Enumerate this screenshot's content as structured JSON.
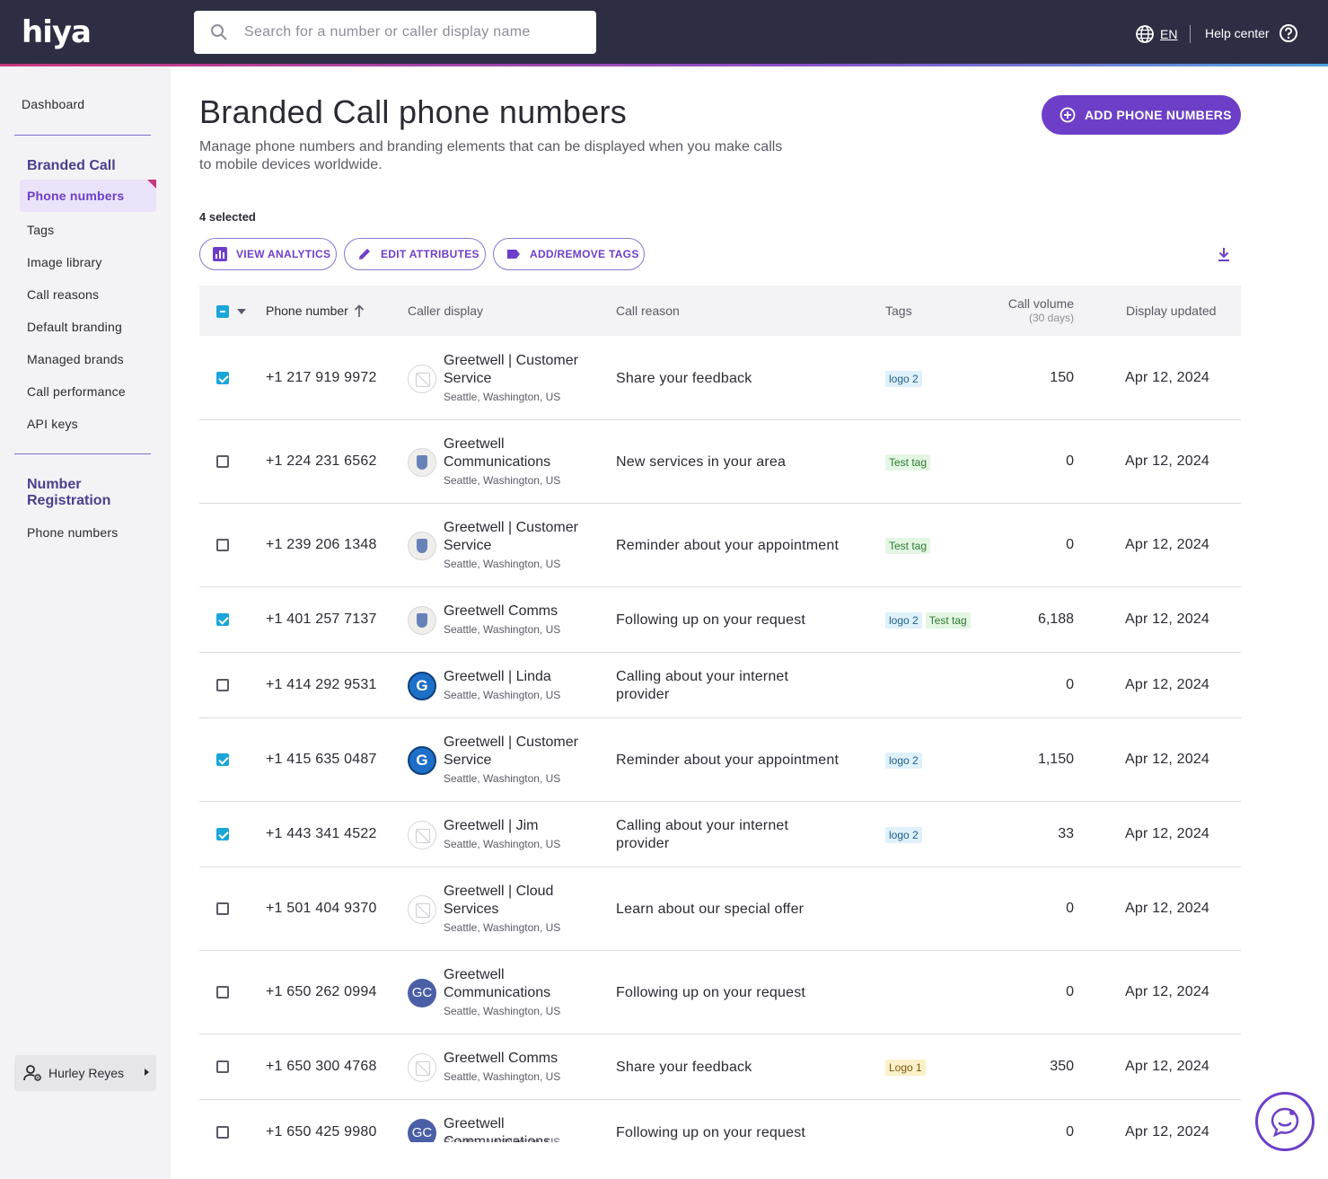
{
  "header": {
    "logo": "hiya",
    "search_placeholder": "Search for a number or caller display name",
    "language": "EN",
    "help_center": "Help center"
  },
  "sidebar": {
    "dashboard": "Dashboard",
    "section1_title": "Branded Call",
    "section1_items": [
      "Phone numbers",
      "Tags",
      "Image library",
      "Call reasons",
      "Default branding",
      "Managed brands",
      "Call performance",
      "API keys"
    ],
    "section2_title_line1": "Number",
    "section2_title_line2": "Registration",
    "section2_items": [
      "Phone numbers"
    ],
    "user": "Hurley Reyes"
  },
  "main": {
    "title": "Branded Call phone numbers",
    "description": "Manage phone numbers and branding elements that can be displayed when you make calls to mobile devices worldwide.",
    "add_button": "ADD PHONE NUMBERS",
    "selected_count": "4 selected",
    "actions": {
      "view_analytics": "VIEW ANALYTICS",
      "edit_attributes": "EDIT ATTRIBUTES",
      "add_remove_tags": "ADD/REMOVE TAGS"
    }
  },
  "table": {
    "columns": {
      "phone": "Phone number",
      "caller": "Caller display",
      "reason": "Call reason",
      "tags": "Tags",
      "volume": "Call volume",
      "volume_sub": "(30 days)",
      "updated": "Display updated"
    },
    "rows": [
      {
        "checked": true,
        "phone": "+1 217 919 9972",
        "avatar": "blank",
        "name": "Greetwell | Customer Service",
        "location": "Seattle, Washington, US",
        "reason": "Share your feedback",
        "tags": [
          "logo 2"
        ],
        "volume": "150",
        "updated": "Apr 12, 2024"
      },
      {
        "checked": false,
        "phone": "+1 224 231 6562",
        "avatar": "emblem",
        "name": "Greetwell Communications",
        "location": "Seattle, Washington, US",
        "reason": "New services in your area",
        "tags": [
          "Test tag"
        ],
        "volume": "0",
        "updated": "Apr 12, 2024"
      },
      {
        "checked": false,
        "phone": "+1 239 206 1348",
        "avatar": "emblem",
        "name": "Greetwell | Customer Service",
        "location": "Seattle, Washington, US",
        "reason": "Reminder about your appointment",
        "tags": [
          "Test tag"
        ],
        "volume": "0",
        "updated": "Apr 12, 2024"
      },
      {
        "checked": true,
        "phone": "+1 401 257 7137",
        "avatar": "emblem",
        "name": "Greetwell Comms",
        "location": "Seattle, Washington, US",
        "reason": "Following up on your request",
        "tags": [
          "logo 2",
          "Test tag"
        ],
        "volume": "6,188",
        "updated": "Apr 12, 2024"
      },
      {
        "checked": false,
        "phone": "+1 414 292 9531",
        "avatar": "g",
        "name": "Greetwell | Linda",
        "location": "Seattle, Washington, US",
        "reason": "Calling about your internet provider",
        "tags": [],
        "volume": "0",
        "updated": "Apr 12, 2024"
      },
      {
        "checked": true,
        "phone": "+1 415 635 0487",
        "avatar": "g",
        "name": "Greetwell | Customer Service",
        "location": "Seattle, Washington, US",
        "reason": "Reminder about your appointment",
        "tags": [
          "logo 2"
        ],
        "volume": "1,150",
        "updated": "Apr 12, 2024"
      },
      {
        "checked": true,
        "phone": "+1 443 341 4522",
        "avatar": "blank",
        "name": "Greetwell | Jim",
        "location": "Seattle, Washington, US",
        "reason": "Calling about your internet provider",
        "tags": [
          "logo 2"
        ],
        "volume": "33",
        "updated": "Apr 12, 2024"
      },
      {
        "checked": false,
        "phone": "+1 501 404 9370",
        "avatar": "blank",
        "name": "Greetwell | Cloud Services",
        "location": "Seattle, Washington, US",
        "reason": "Learn about our special offer",
        "tags": [],
        "volume": "0",
        "updated": "Apr 12, 2024"
      },
      {
        "checked": false,
        "phone": "+1 650 262 0994",
        "avatar": "gc",
        "name": "Greetwell Communications",
        "location": "Seattle, Washington, US",
        "reason": "Following up on your request",
        "tags": [],
        "volume": "0",
        "updated": "Apr 12, 2024"
      },
      {
        "checked": false,
        "phone": "+1 650 300 4768",
        "avatar": "blank",
        "name": "Greetwell Comms",
        "location": "Seattle, Washington, US",
        "reason": "Share your feedback",
        "tags": [
          "Logo 1"
        ],
        "volume": "350",
        "updated": "Apr 12, 2024"
      },
      {
        "checked": false,
        "phone": "+1 650 425 9980",
        "avatar": "gc",
        "name": "Greetwell Communications",
        "location": "Seattle, Washington, US",
        "reason": "Following up on your request",
        "tags": [],
        "volume": "0",
        "updated": "Apr 12, 2024"
      }
    ]
  },
  "colors": {
    "header_bg": "#2d2e44",
    "accent_purple": "#6d3fc8",
    "checkbox_blue": "#1aa6d8"
  }
}
